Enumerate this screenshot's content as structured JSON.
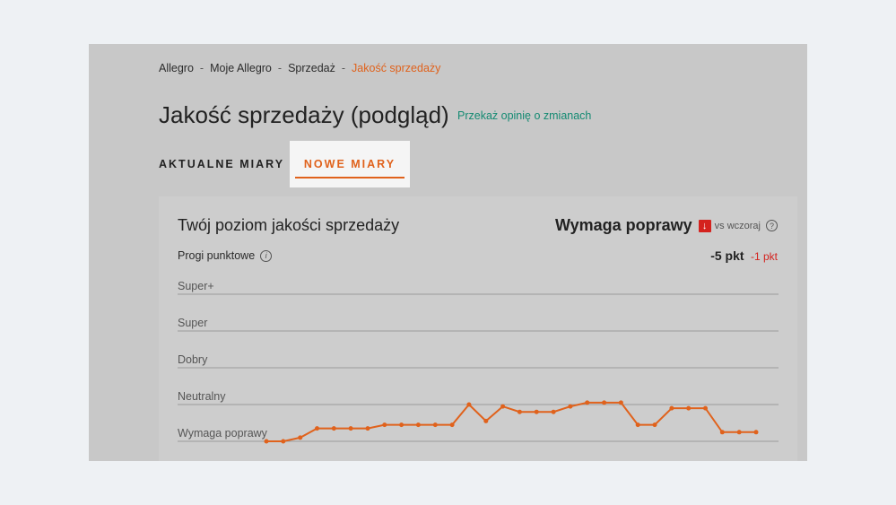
{
  "breadcrumb": {
    "items": [
      "Allegro",
      "Moje Allegro",
      "Sprzedaż"
    ],
    "current": "Jakość sprzedaży",
    "separator": "-"
  },
  "page": {
    "title": "Jakość sprzedaży (podgląd)",
    "feedback_link": "Przekaż opinię o zmianach"
  },
  "tabs": [
    {
      "label": "AKTUALNE MIARY",
      "active": false
    },
    {
      "label": "NOWE MIARY",
      "active": true
    }
  ],
  "card": {
    "title": "Twój poziom jakości sprzedaży",
    "status": "Wymaga poprawy",
    "status_icon": "arrow-down-icon",
    "compare_label": "vs wczoraj",
    "help_icon": "question-circle-icon",
    "thresholds_label": "Progi punktowe",
    "info_icon": "info-circle-icon",
    "score": "-5 pkt",
    "score_delta": "-1 pkt"
  },
  "colors": {
    "accent": "#e0621c",
    "link": "#148a72",
    "negative": "#d4221e"
  },
  "chart_data": {
    "type": "line",
    "levels": [
      "Super+",
      "Super",
      "Dobry",
      "Neutralny",
      "Wymaga poprawy"
    ],
    "series": [
      {
        "values": [
          0.0,
          0.0,
          0.1,
          0.35,
          0.35,
          0.35,
          0.35,
          0.45,
          0.45,
          0.45,
          0.45,
          0.45,
          1.0,
          0.55,
          0.95,
          0.8,
          0.8,
          0.8,
          0.95,
          1.05,
          1.05,
          1.05,
          0.45,
          0.45,
          0.9,
          0.9,
          0.9,
          0.25,
          0.25,
          0.25
        ]
      }
    ],
    "ylim": [
      0,
      5
    ],
    "grid": true
  }
}
